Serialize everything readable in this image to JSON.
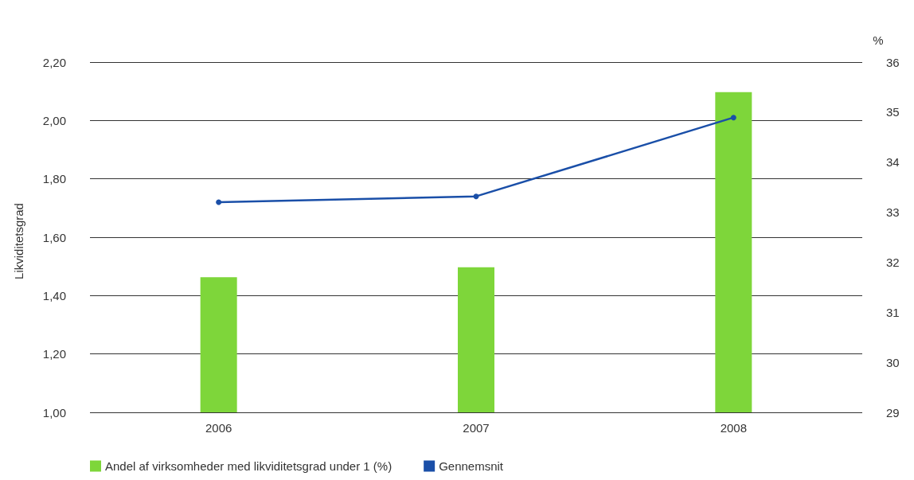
{
  "chart_data": {
    "type": "bar",
    "ylabel": "Likviditetsgrad",
    "y2label": "%",
    "categories": [
      "2006",
      "2007",
      "2008"
    ],
    "series": [
      {
        "name": "Andel af virksomheder med likviditetsgrad under 1 (%)",
        "axis": "y2",
        "color": "#7ed63a",
        "values": [
          31.7,
          31.9,
          35.4
        ]
      },
      {
        "name": "Gennemsnit",
        "type": "line",
        "color": "#1a4fa8",
        "values": [
          1.72,
          1.74,
          2.01
        ]
      }
    ],
    "ylim": [
      1,
      2.2
    ],
    "yticks": [
      {
        "value": 1,
        "label": "1,00"
      },
      {
        "value": 1.2,
        "label": "1,20"
      },
      {
        "value": 1.4,
        "label": "1,40"
      },
      {
        "value": 1.6,
        "label": "1,60"
      },
      {
        "value": 1.8,
        "label": "1,80"
      },
      {
        "value": 2,
        "label": "2,00"
      },
      {
        "value": 2.2,
        "label": "2,20"
      }
    ],
    "y2lim": [
      29,
      36
    ],
    "y2ticks": [
      29,
      30,
      31,
      32,
      33,
      34,
      35,
      36
    ],
    "grid": "y",
    "legend": "bottom left",
    "marker": "circle",
    "line_style": "solid"
  }
}
